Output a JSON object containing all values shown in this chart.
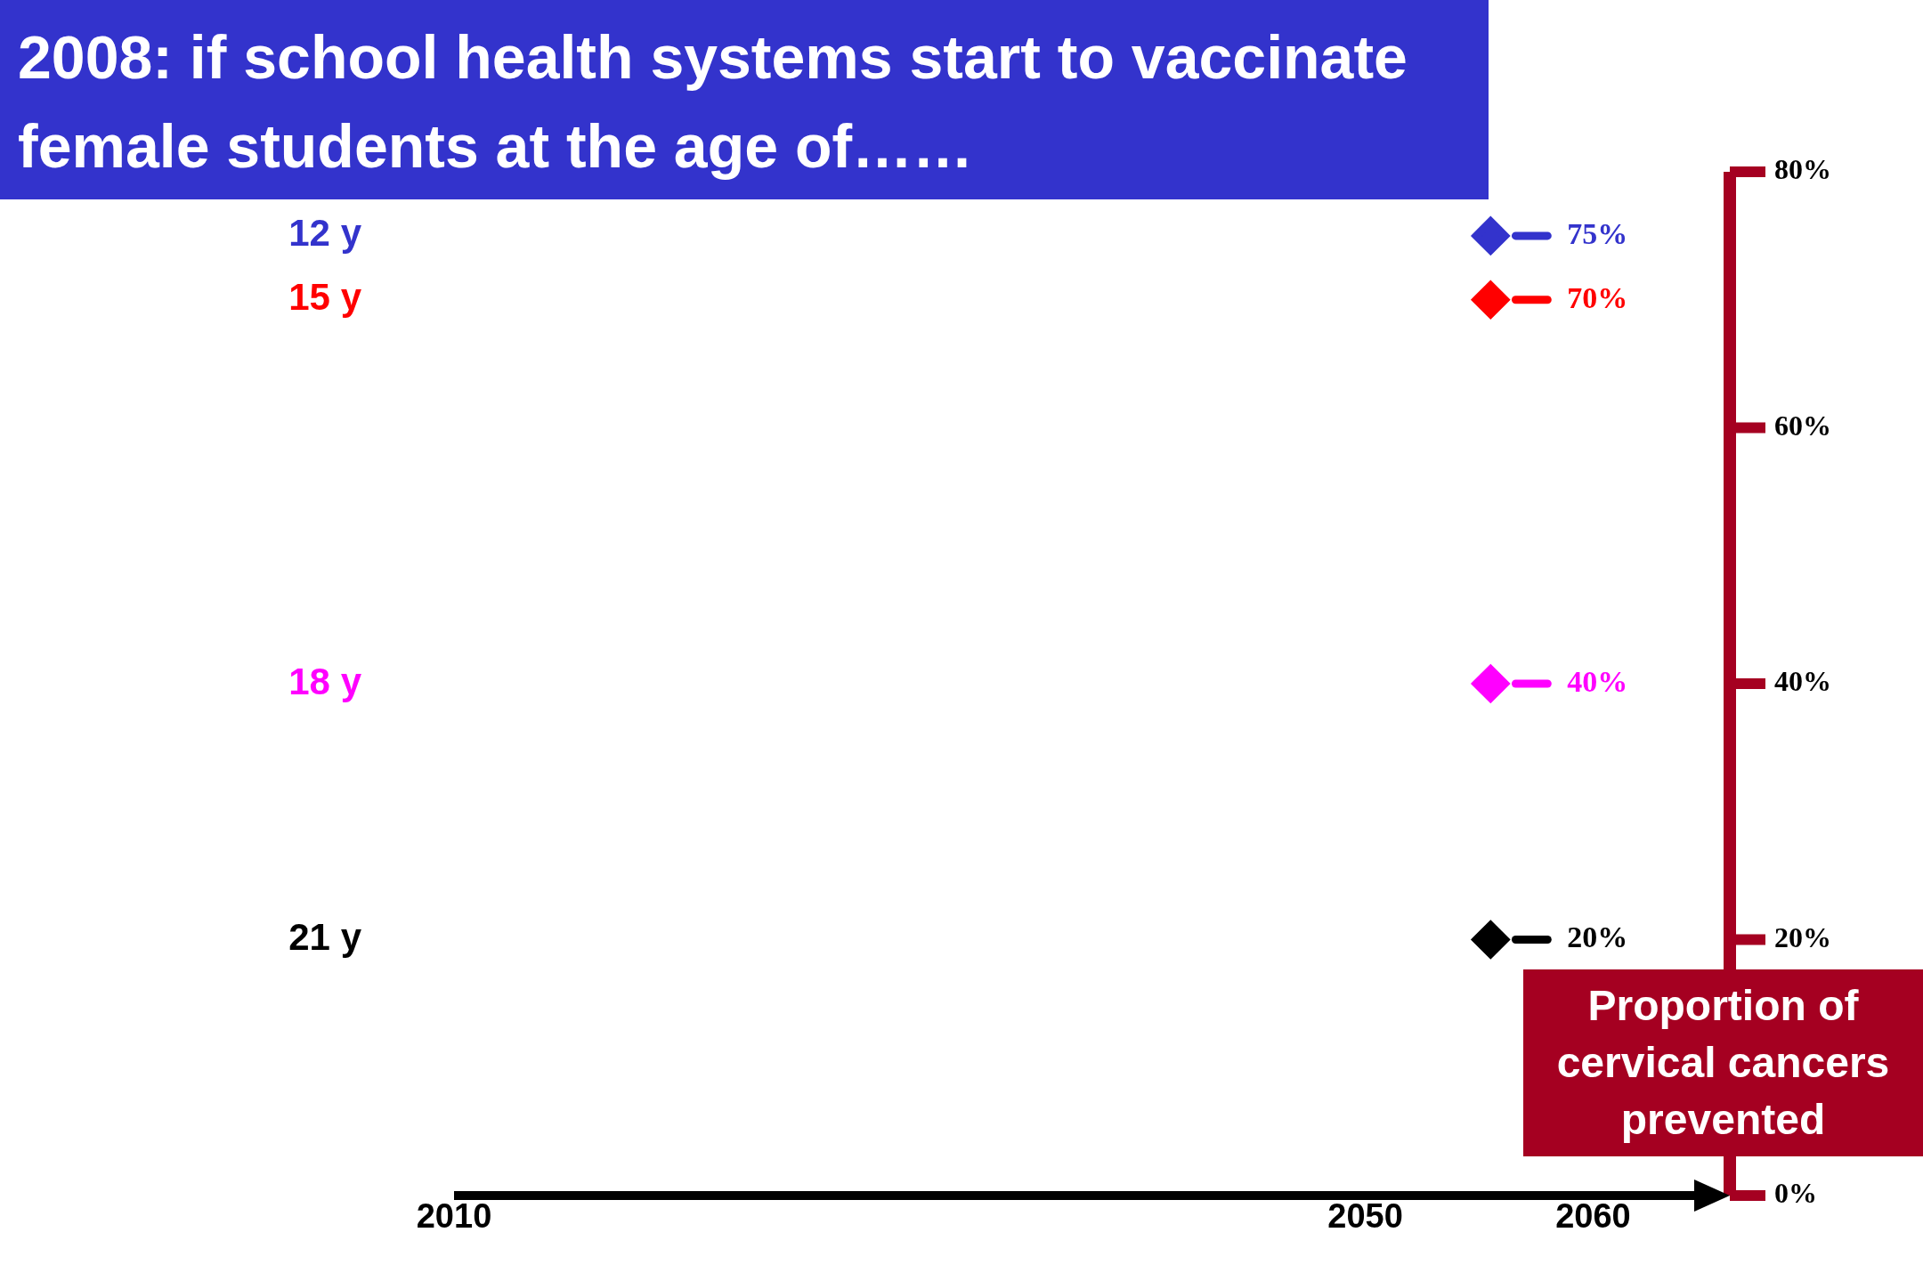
{
  "chart_data": {
    "type": "line",
    "title": "2008: if school health systems start to vaccinate female students at the age of……",
    "ylabel": "Proportion of cervical cancers prevented",
    "x": [
      2055.5,
      2056.6,
      2058
    ],
    "series": [
      {
        "name": "12 y",
        "color": "#3333cc",
        "values": [
          null,
          75,
          75
        ],
        "value_labels": [
          null,
          null,
          "75%"
        ]
      },
      {
        "name": "15 y",
        "color": "#ff0000",
        "values": [
          null,
          70,
          70
        ],
        "value_labels": [
          null,
          null,
          "70%"
        ]
      },
      {
        "name": "18 y",
        "color": "#ff00ff",
        "values": [
          null,
          40,
          40
        ],
        "value_labels": [
          null,
          null,
          "40%"
        ]
      },
      {
        "name": "21 y",
        "color": "#000000",
        "values": [
          null,
          20,
          20
        ],
        "value_labels": [
          null,
          null,
          "20%"
        ]
      },
      {
        "type": "scatter",
        "color": "#3333cc",
        "values": [
          75,
          null,
          null
        ],
        "marker": "diamond"
      },
      {
        "type": "scatter",
        "color": "#ff0000",
        "values": [
          70,
          null,
          null
        ],
        "marker": "diamond"
      },
      {
        "type": "scatter",
        "color": "#ff00ff",
        "values": [
          40,
          null,
          null
        ],
        "marker": "diamond"
      },
      {
        "type": "scatter",
        "color": "#000000",
        "values": [
          20,
          null,
          null
        ],
        "marker": "diamond"
      }
    ],
    "xlim": [
      2010,
      2066
    ],
    "xticks": [
      2010,
      2050,
      2060
    ],
    "ylim": [
      0,
      80
    ],
    "yticks": [
      {
        "value": 0,
        "label": "0%"
      },
      {
        "value": 20,
        "label": "20%"
      },
      {
        "value": 40,
        "label": "40%"
      },
      {
        "value": 60,
        "label": "60%"
      },
      {
        "value": 80,
        "label": "80%"
      }
    ],
    "line_style": "solid",
    "legend": false,
    "grid": false
  }
}
